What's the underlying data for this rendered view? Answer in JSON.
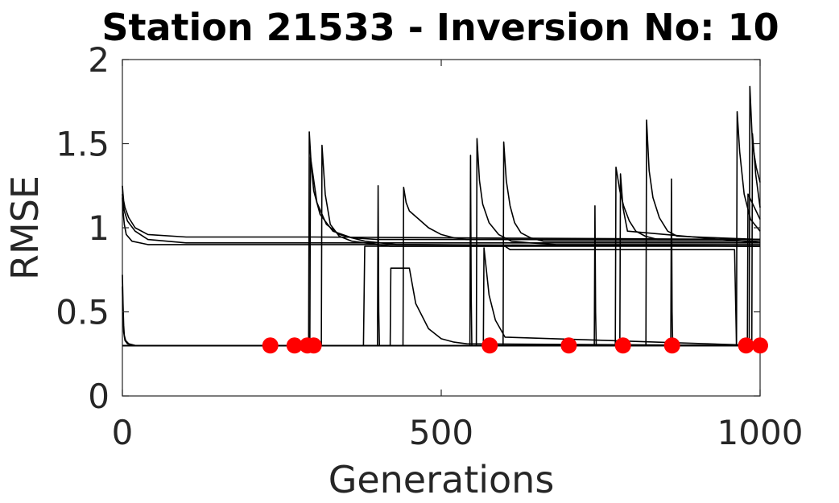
{
  "chart_data": {
    "type": "line",
    "title": "Station 21533 - Inversion No: 10",
    "xlabel": "Generations",
    "ylabel": "RMSE",
    "xlim": [
      0,
      1000
    ],
    "ylim": [
      0,
      2
    ],
    "xticks": [
      0,
      500,
      1000
    ],
    "xtick_labels": [
      "0",
      "500",
      "1000"
    ],
    "yticks": [
      0,
      0.5,
      1,
      1.5,
      2
    ],
    "ytick_labels": [
      "0",
      "0.5",
      "1",
      "1.5",
      "2"
    ],
    "grid": false,
    "legend": "none",
    "line_color": "#000000",
    "marker_color": "#ff0000",
    "series": [
      {
        "x": [
          0,
          1,
          2,
          4,
          10,
          20,
          40,
          100,
          300,
          1000
        ],
        "y": [
          1.25,
          1.2,
          1.16,
          1.12,
          1.06,
          1.0,
          0.96,
          0.945,
          0.945,
          0.93
        ]
      },
      {
        "x": [
          0,
          1,
          3,
          8,
          20,
          40,
          100,
          300,
          1000
        ],
        "y": [
          1.2,
          1.15,
          1.1,
          1.04,
          0.98,
          0.93,
          0.91,
          0.91,
          0.91
        ]
      },
      {
        "x": [
          0,
          1,
          3,
          6,
          15,
          40,
          200,
          400,
          420,
          1000
        ],
        "y": [
          1.18,
          1.1,
          1.02,
          0.96,
          0.92,
          0.9,
          0.9,
          0.9,
          0.89,
          0.89
        ]
      },
      {
        "x": [
          0,
          1,
          2,
          3,
          5,
          10,
          20,
          1000
        ],
        "y": [
          0.72,
          0.55,
          0.42,
          0.36,
          0.33,
          0.31,
          0.3,
          0.3
        ]
      },
      {
        "x": [
          0,
          1,
          2,
          4,
          8,
          20,
          1000
        ],
        "y": [
          0.65,
          0.48,
          0.38,
          0.33,
          0.31,
          0.3,
          0.3
        ]
      },
      {
        "x": [
          0,
          292,
          293,
          296,
          300,
          310,
          330,
          360,
          400,
          450,
          1000
        ],
        "y": [
          0.3,
          0.3,
          1.57,
          1.38,
          1.22,
          1.08,
          0.98,
          0.94,
          0.93,
          0.93,
          0.93
        ]
      },
      {
        "x": [
          0,
          294,
          295,
          305,
          320,
          340,
          380,
          430,
          460,
          1000
        ],
        "y": [
          0.3,
          0.3,
          1.42,
          1.15,
          1.02,
          0.96,
          0.92,
          0.9,
          0.9,
          0.89
        ]
      },
      {
        "x": [
          0,
          312,
          313,
          318,
          326,
          340,
          360,
          400,
          1000
        ],
        "y": [
          0.3,
          0.3,
          1.49,
          1.2,
          1.02,
          0.95,
          0.92,
          0.9,
          0.89
        ]
      },
      {
        "x": [
          0,
          400,
          401,
          402,
          403,
          1000
        ],
        "y": [
          0.3,
          0.3,
          1.25,
          0.5,
          0.3,
          0.3
        ]
      },
      {
        "x": [
          0,
          440,
          441,
          445,
          450,
          465,
          480,
          500,
          520,
          540,
          1000
        ],
        "y": [
          0.3,
          0.3,
          1.24,
          1.15,
          1.1,
          1.05,
          1.0,
          0.96,
          0.94,
          0.93,
          0.93
        ]
      },
      {
        "x": [
          0,
          545,
          546,
          547,
          548,
          1000
        ],
        "y": [
          0.3,
          0.3,
          1.43,
          0.6,
          0.3,
          0.3
        ]
      },
      {
        "x": [
          0,
          555,
          556,
          560,
          565,
          575,
          590,
          610,
          640,
          680,
          1000
        ],
        "y": [
          0.3,
          0.3,
          1.53,
          1.28,
          1.14,
          1.03,
          0.96,
          0.92,
          0.91,
          0.9,
          0.9
        ]
      },
      {
        "x": [
          0,
          597,
          598,
          602,
          608,
          615,
          625,
          640,
          660,
          1000
        ],
        "y": [
          0.3,
          0.3,
          1.51,
          1.28,
          1.13,
          1.03,
          0.97,
          0.94,
          0.92,
          0.92
        ]
      },
      {
        "x": [
          0,
          740,
          741,
          742,
          743,
          1000
        ],
        "y": [
          0.3,
          0.3,
          1.13,
          0.5,
          0.3,
          0.3
        ]
      },
      {
        "x": [
          0,
          773,
          774,
          780,
          786,
          795,
          805,
          820,
          840,
          1000
        ],
        "y": [
          0.3,
          0.3,
          1.36,
          1.22,
          1.13,
          1.04,
          0.98,
          0.95,
          0.93,
          0.93
        ]
      },
      {
        "x": [
          0,
          780,
          781,
          785,
          792,
          1000
        ],
        "y": [
          0.3,
          0.3,
          1.32,
          1.12,
          0.98,
          0.91
        ]
      },
      {
        "x": [
          0,
          821,
          822,
          826,
          832,
          842,
          855,
          870,
          1000
        ],
        "y": [
          0.3,
          0.3,
          1.64,
          1.34,
          1.18,
          1.06,
          0.98,
          0.95,
          0.93
        ]
      },
      {
        "x": [
          0,
          860,
          861,
          862,
          863,
          1000
        ],
        "y": [
          0.3,
          0.3,
          1.29,
          0.5,
          0.3,
          0.3
        ]
      },
      {
        "x": [
          0,
          963,
          964,
          968,
          975,
          985,
          1000
        ],
        "y": [
          0.3,
          0.3,
          1.69,
          1.45,
          1.2,
          1.05,
          0.98
        ]
      },
      {
        "x": [
          0,
          983,
          984,
          988,
          994,
          1000
        ],
        "y": [
          0.3,
          0.3,
          1.84,
          1.5,
          1.36,
          1.27
        ]
      },
      {
        "x": [
          0,
          987,
          988,
          993,
          1000
        ],
        "y": [
          0.3,
          0.3,
          1.56,
          1.32,
          1.12
        ]
      },
      {
        "x": [
          0,
          980,
          981,
          1000
        ],
        "y": [
          0.3,
          0.3,
          1.2,
          1.05
        ]
      },
      {
        "x": [
          0,
          378,
          380,
          420,
          480,
          580,
          600,
          608,
          610,
          700,
          960,
          963,
          980,
          1000
        ],
        "y": [
          0.3,
          0.3,
          0.89,
          0.89,
          0.89,
          0.89,
          0.89,
          0.87,
          0.87,
          0.87,
          0.87,
          0.3,
          0.3,
          0.3
        ]
      },
      {
        "x": [
          0,
          420,
          421,
          450,
          460,
          480,
          500,
          520,
          540,
          1000
        ],
        "y": [
          0.3,
          0.3,
          0.76,
          0.76,
          0.55,
          0.4,
          0.34,
          0.32,
          0.31,
          0.3
        ]
      },
      {
        "x": [
          0,
          566,
          567,
          575,
          585,
          600,
          1000
        ],
        "y": [
          0.3,
          0.3,
          0.88,
          0.6,
          0.45,
          0.35,
          0.3
        ]
      }
    ],
    "markers": {
      "type": "scatter",
      "x": [
        232,
        270,
        290,
        300,
        576,
        700,
        785,
        862,
        978,
        1000
      ],
      "y": [
        0.3,
        0.3,
        0.3,
        0.3,
        0.3,
        0.3,
        0.3,
        0.3,
        0.3,
        0.3
      ]
    }
  }
}
